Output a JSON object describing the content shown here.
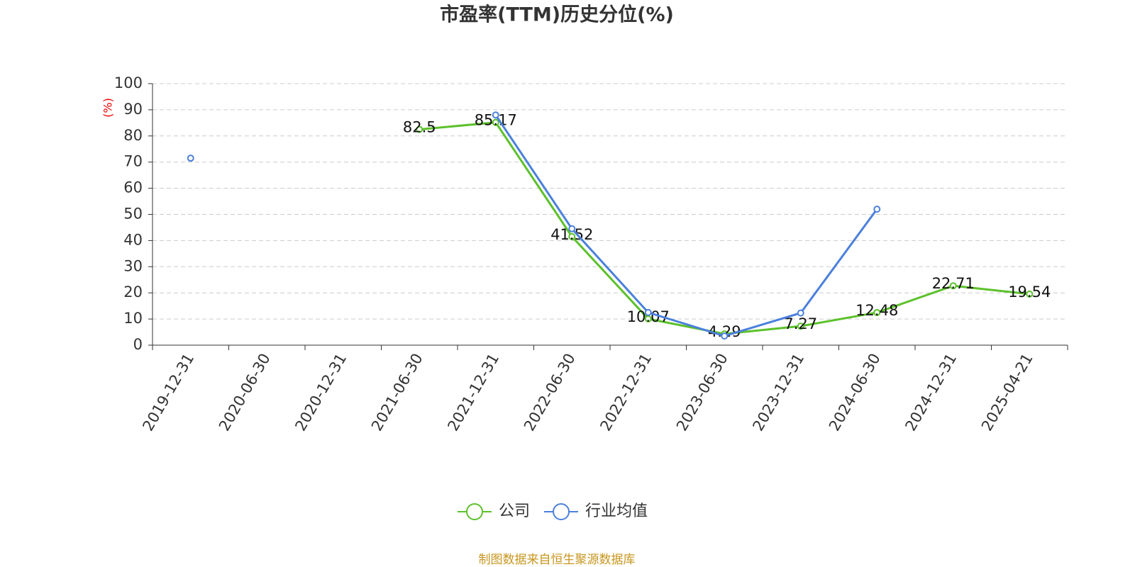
{
  "chart_data": {
    "type": "line",
    "title": "市盈率(TTM)历史分位(%)",
    "y_label": "(%)",
    "categories": [
      "2019-12-31",
      "2020-06-30",
      "2020-12-31",
      "2021-06-30",
      "2021-12-31",
      "2022-06-30",
      "2022-12-31",
      "2023-06-30",
      "2023-12-31",
      "2024-06-30",
      "2024-12-31",
      "2025-04-21"
    ],
    "series": [
      {
        "name": "公司",
        "color": "#5cc12b",
        "values": [
          null,
          null,
          null,
          82.5,
          85.17,
          41.52,
          10.07,
          4.29,
          7.27,
          12.48,
          22.71,
          19.54
        ],
        "data_labels": true
      },
      {
        "name": "行业均值",
        "color": "#4b80dc",
        "values": [
          71.5,
          null,
          null,
          null,
          88,
          44.5,
          12.5,
          3.5,
          12.3,
          52,
          null,
          null
        ],
        "data_labels": false
      }
    ],
    "ylim": [
      0,
      100
    ],
    "yticks": [
      0,
      10,
      20,
      30,
      40,
      50,
      60,
      70,
      80,
      90,
      100
    ],
    "grid": true,
    "legend": "bottom",
    "source": "制图数据来自恒生聚源数据库"
  }
}
